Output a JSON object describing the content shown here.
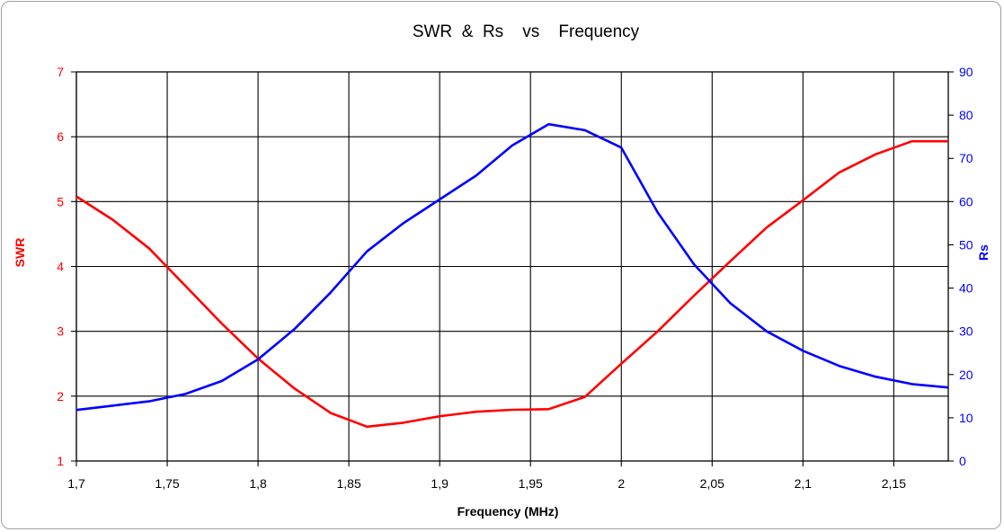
{
  "chart_data": {
    "type": "line",
    "title": "SWR  &  Rs    vs    Frequency",
    "xlabel": "Frequency (MHz)",
    "ylabel_left": "SWR",
    "ylabel_right": "Rs",
    "xlim": [
      1.7,
      2.18
    ],
    "ylim_left": [
      1,
      7
    ],
    "ylim_right": [
      0,
      90
    ],
    "grid": true,
    "x_ticks": [
      "1,7",
      "1,75",
      "1,8",
      "1,85",
      "1,9",
      "1,95",
      "2",
      "2,05",
      "2,1",
      "2,15"
    ],
    "x_tick_values": [
      1.7,
      1.75,
      1.8,
      1.85,
      1.9,
      1.95,
      2.0,
      2.05,
      2.1,
      2.15
    ],
    "y_left_ticks": [
      "1",
      "2",
      "3",
      "4",
      "5",
      "6",
      "7"
    ],
    "y_left_tick_values": [
      1,
      2,
      3,
      4,
      5,
      6,
      7
    ],
    "y_right_ticks": [
      "0",
      "10",
      "20",
      "30",
      "40",
      "50",
      "60",
      "70",
      "80",
      "90"
    ],
    "y_right_tick_values": [
      0,
      10,
      20,
      30,
      40,
      50,
      60,
      70,
      80,
      90
    ],
    "colors": {
      "swr": "#ff0000",
      "rs": "#0000ff",
      "grid": "#000000"
    },
    "series": [
      {
        "axis": "left",
        "color": "#ff0000",
        "x": [
          1.7,
          1.72,
          1.74,
          1.76,
          1.78,
          1.8,
          1.82,
          1.84,
          1.86,
          1.88,
          1.9,
          1.92,
          1.94,
          1.96,
          1.98,
          2.0,
          2.02,
          2.04,
          2.06,
          2.08,
          2.1,
          2.12,
          2.14,
          2.16,
          2.18
        ],
        "values": [
          5.08,
          4.72,
          4.28,
          3.7,
          3.12,
          2.58,
          2.12,
          1.74,
          1.53,
          1.59,
          1.69,
          1.76,
          1.79,
          1.8,
          1.99,
          2.5,
          3.0,
          3.55,
          4.08,
          4.6,
          5.02,
          5.45,
          5.73,
          5.93,
          5.93
        ]
      },
      {
        "axis": "right",
        "color": "#0000ff",
        "x": [
          1.7,
          1.72,
          1.74,
          1.76,
          1.78,
          1.8,
          1.82,
          1.84,
          1.86,
          1.88,
          1.9,
          1.92,
          1.94,
          1.96,
          1.98,
          2.0,
          2.02,
          2.04,
          2.06,
          2.08,
          2.1,
          2.12,
          2.14,
          2.16,
          2.18
        ],
        "values": [
          11.8,
          12.8,
          13.8,
          15.5,
          18.5,
          23.5,
          30.5,
          39,
          48.5,
          55,
          60.5,
          66,
          73,
          77.9,
          76.5,
          72.5,
          57.5,
          45.5,
          36.5,
          30,
          25.5,
          22,
          19.5,
          17.8,
          17
        ]
      }
    ]
  }
}
